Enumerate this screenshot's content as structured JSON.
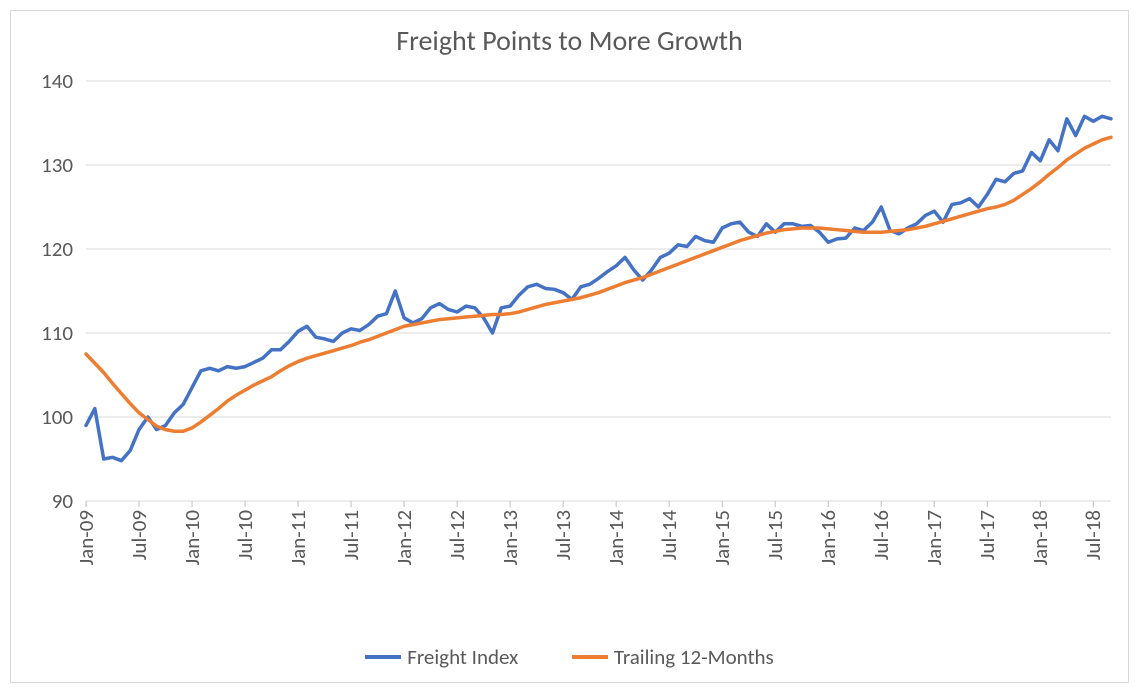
{
  "chart": {
    "type": "line",
    "title": "Freight Points to More Growth",
    "title_fontsize": 28,
    "title_color": "#595959",
    "background_color": "#ffffff",
    "frame_border_color": "#d9d9d9",
    "plot_border_color": "#d9d9d9",
    "grid_color": "#d9d9d9",
    "axis_line_color": "#bfbfbf",
    "axis_label_color": "#595959",
    "axis_label_fontsize": 21,
    "y_axis": {
      "min": 90,
      "max": 140,
      "tick_step": 10,
      "ticks": [
        90,
        100,
        110,
        120,
        130,
        140
      ]
    },
    "x_axis": {
      "tick_labels": [
        "Jan-09",
        "Jul-09",
        "Jan-10",
        "Jul-10",
        "Jan-11",
        "Jul-11",
        "Jan-12",
        "Jul-12",
        "Jan-13",
        "Jul-13",
        "Jan-14",
        "Jul-14",
        "Jan-15",
        "Jul-15",
        "Jan-16",
        "Jul-16",
        "Jan-17",
        "Jul-17",
        "Jan-18",
        "Jul-18"
      ],
      "tick_indices": [
        0,
        6,
        12,
        18,
        24,
        30,
        36,
        42,
        48,
        54,
        60,
        66,
        72,
        78,
        84,
        90,
        96,
        102,
        108,
        114
      ],
      "n_points": 117
    },
    "line_width": 3.5,
    "series": [
      {
        "name": "Freight Index",
        "color": "#4472c4",
        "values": [
          99.0,
          101.0,
          95.0,
          95.2,
          94.8,
          96.0,
          98.5,
          100.0,
          98.5,
          99.0,
          100.5,
          101.5,
          103.5,
          105.5,
          105.8,
          105.5,
          106.0,
          105.8,
          106.0,
          106.5,
          107.0,
          108.0,
          108.0,
          109.0,
          110.2,
          110.8,
          109.5,
          109.3,
          109.0,
          110.0,
          110.5,
          110.3,
          111.0,
          112.0,
          112.3,
          115.0,
          111.8,
          111.2,
          111.7,
          113.0,
          113.5,
          112.8,
          112.5,
          113.2,
          113.0,
          111.8,
          110.0,
          113.0,
          113.2,
          114.5,
          115.5,
          115.8,
          115.3,
          115.2,
          114.8,
          114.0,
          115.5,
          115.8,
          116.5,
          117.3,
          118.0,
          119.0,
          117.5,
          116.3,
          117.5,
          119.0,
          119.5,
          120.5,
          120.3,
          121.5,
          121.0,
          120.8,
          122.5,
          123.0,
          123.2,
          122.0,
          121.5,
          123.0,
          122.0,
          123.0,
          123.0,
          122.7,
          122.8,
          122.0,
          120.8,
          121.2,
          121.3,
          122.5,
          122.2,
          123.2,
          125.0,
          122.2,
          121.8,
          122.5,
          123.0,
          124.0,
          124.5,
          123.2,
          125.3,
          125.5,
          126.0,
          125.0,
          126.5,
          128.3,
          128.0,
          129.0,
          129.3,
          131.5,
          130.5,
          133.0,
          131.7,
          135.5,
          133.5,
          135.8,
          135.2,
          135.8,
          135.5
        ]
      },
      {
        "name": "Trailing 12-Months",
        "color": "#ed7d31",
        "values": [
          107.5,
          106.4,
          105.3,
          104.0,
          102.8,
          101.6,
          100.5,
          99.7,
          98.9,
          98.5,
          98.3,
          98.3,
          98.7,
          99.4,
          100.2,
          101.0,
          101.9,
          102.6,
          103.2,
          103.8,
          104.3,
          104.8,
          105.5,
          106.1,
          106.6,
          107.0,
          107.3,
          107.6,
          107.9,
          108.2,
          108.5,
          108.9,
          109.2,
          109.6,
          110.0,
          110.4,
          110.8,
          111.0,
          111.2,
          111.4,
          111.6,
          111.7,
          111.8,
          111.9,
          112.0,
          112.1,
          112.2,
          112.2,
          112.3,
          112.5,
          112.8,
          113.1,
          113.4,
          113.6,
          113.8,
          114.0,
          114.2,
          114.5,
          114.8,
          115.2,
          115.6,
          116.0,
          116.3,
          116.6,
          117.0,
          117.4,
          117.8,
          118.2,
          118.6,
          119.0,
          119.4,
          119.8,
          120.2,
          120.6,
          121.0,
          121.3,
          121.6,
          121.9,
          122.1,
          122.3,
          122.4,
          122.5,
          122.5,
          122.5,
          122.4,
          122.3,
          122.2,
          122.1,
          122.0,
          122.0,
          122.0,
          122.1,
          122.2,
          122.3,
          122.5,
          122.7,
          123.0,
          123.3,
          123.6,
          123.9,
          124.2,
          124.5,
          124.8,
          125.0,
          125.3,
          125.8,
          126.5,
          127.2,
          128.0,
          128.9,
          129.7,
          130.6,
          131.3,
          132.0,
          132.5,
          133.0,
          133.3
        ]
      }
    ],
    "legend": {
      "items": [
        {
          "label": "Freight Index",
          "color": "#4472c4"
        },
        {
          "label": "Trailing 12-Months",
          "color": "#ed7d31"
        }
      ],
      "fontsize": 21,
      "text_color": "#595959"
    }
  }
}
